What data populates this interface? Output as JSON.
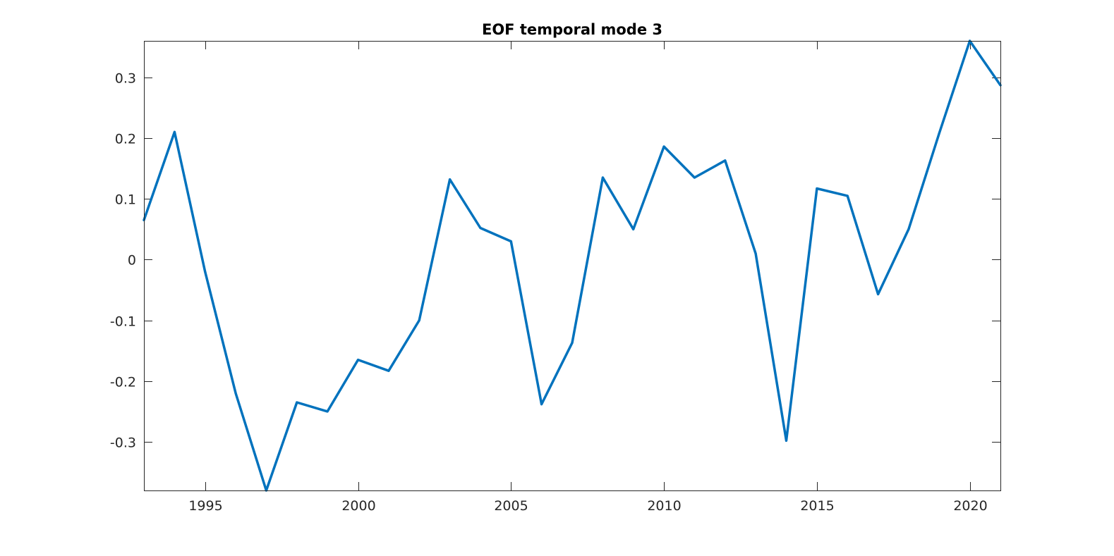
{
  "chart_data": {
    "type": "line",
    "title": "EOF temporal mode 3",
    "xlabel": "",
    "ylabel": "",
    "xlim": [
      1993,
      2021
    ],
    "ylim": [
      -0.38,
      0.36
    ],
    "x_ticks": [
      1995,
      2000,
      2005,
      2010,
      2015,
      2020
    ],
    "x_tick_labels": [
      "1995",
      "2000",
      "2005",
      "2010",
      "2015",
      "2020"
    ],
    "y_ticks": [
      -0.3,
      -0.2,
      -0.1,
      0,
      0.1,
      0.2,
      0.3
    ],
    "y_tick_labels": [
      "-0.3",
      "-0.2",
      "-0.1",
      "0",
      "0.1",
      "0.2",
      "0.3"
    ],
    "grid": false,
    "series": [
      {
        "name": "mode 3",
        "color": "#0072BD",
        "x": [
          1993,
          1994,
          1995,
          1996,
          1997,
          1998,
          1999,
          2000,
          2001,
          2002,
          2003,
          2004,
          2005,
          2006,
          2007,
          2008,
          2009,
          2010,
          2011,
          2012,
          2013,
          2014,
          2015,
          2016,
          2017,
          2018,
          2019,
          2020,
          2021
        ],
        "values": [
          0.065,
          0.21,
          -0.02,
          -0.22,
          -0.38,
          -0.235,
          -0.25,
          -0.165,
          -0.183,
          -0.1,
          0.132,
          0.052,
          0.03,
          -0.238,
          -0.137,
          0.135,
          0.05,
          0.186,
          0.135,
          0.163,
          0.01,
          -0.298,
          0.117,
          0.105,
          -0.057,
          0.05,
          0.208,
          0.36,
          0.287
        ]
      }
    ]
  }
}
